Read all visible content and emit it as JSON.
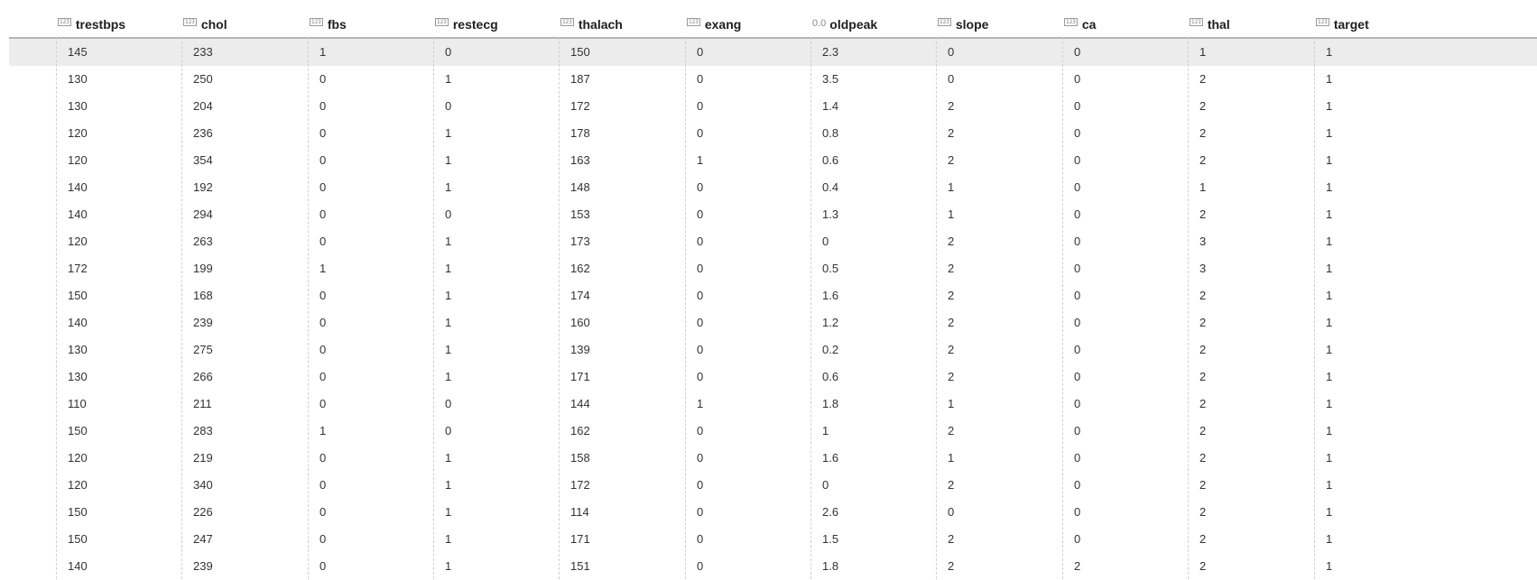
{
  "table": {
    "columns": [
      {
        "key": "trestbps",
        "label": "trestbps",
        "type_icon": "123"
      },
      {
        "key": "chol",
        "label": "chol",
        "type_icon": "123"
      },
      {
        "key": "fbs",
        "label": "fbs",
        "type_icon": "123"
      },
      {
        "key": "restecg",
        "label": "restecg",
        "type_icon": "123"
      },
      {
        "key": "thalach",
        "label": "thalach",
        "type_icon": "123"
      },
      {
        "key": "exang",
        "label": "exang",
        "type_icon": "123"
      },
      {
        "key": "oldpeak",
        "label": "oldpeak",
        "type_icon": "0.0"
      },
      {
        "key": "slope",
        "label": "slope",
        "type_icon": "123"
      },
      {
        "key": "ca",
        "label": "ca",
        "type_icon": "123"
      },
      {
        "key": "thal",
        "label": "thal",
        "type_icon": "123"
      },
      {
        "key": "target",
        "label": "target",
        "type_icon": "123"
      }
    ],
    "selected_row": 0,
    "rows": [
      [
        "145",
        "233",
        "1",
        "0",
        "150",
        "0",
        "2.3",
        "0",
        "0",
        "1",
        "1"
      ],
      [
        "130",
        "250",
        "0",
        "1",
        "187",
        "0",
        "3.5",
        "0",
        "0",
        "2",
        "1"
      ],
      [
        "130",
        "204",
        "0",
        "0",
        "172",
        "0",
        "1.4",
        "2",
        "0",
        "2",
        "1"
      ],
      [
        "120",
        "236",
        "0",
        "1",
        "178",
        "0",
        "0.8",
        "2",
        "0",
        "2",
        "1"
      ],
      [
        "120",
        "354",
        "0",
        "1",
        "163",
        "1",
        "0.6",
        "2",
        "0",
        "2",
        "1"
      ],
      [
        "140",
        "192",
        "0",
        "1",
        "148",
        "0",
        "0.4",
        "1",
        "0",
        "1",
        "1"
      ],
      [
        "140",
        "294",
        "0",
        "0",
        "153",
        "0",
        "1.3",
        "1",
        "0",
        "2",
        "1"
      ],
      [
        "120",
        "263",
        "0",
        "1",
        "173",
        "0",
        "0",
        "2",
        "0",
        "3",
        "1"
      ],
      [
        "172",
        "199",
        "1",
        "1",
        "162",
        "0",
        "0.5",
        "2",
        "0",
        "3",
        "1"
      ],
      [
        "150",
        "168",
        "0",
        "1",
        "174",
        "0",
        "1.6",
        "2",
        "0",
        "2",
        "1"
      ],
      [
        "140",
        "239",
        "0",
        "1",
        "160",
        "0",
        "1.2",
        "2",
        "0",
        "2",
        "1"
      ],
      [
        "130",
        "275",
        "0",
        "1",
        "139",
        "0",
        "0.2",
        "2",
        "0",
        "2",
        "1"
      ],
      [
        "130",
        "266",
        "0",
        "1",
        "171",
        "0",
        "0.6",
        "2",
        "0",
        "2",
        "1"
      ],
      [
        "110",
        "211",
        "0",
        "0",
        "144",
        "1",
        "1.8",
        "1",
        "0",
        "2",
        "1"
      ],
      [
        "150",
        "283",
        "1",
        "0",
        "162",
        "0",
        "1",
        "2",
        "0",
        "2",
        "1"
      ],
      [
        "120",
        "219",
        "0",
        "1",
        "158",
        "0",
        "1.6",
        "1",
        "0",
        "2",
        "1"
      ],
      [
        "120",
        "340",
        "0",
        "1",
        "172",
        "0",
        "0",
        "2",
        "0",
        "2",
        "1"
      ],
      [
        "150",
        "226",
        "0",
        "1",
        "114",
        "0",
        "2.6",
        "0",
        "0",
        "2",
        "1"
      ],
      [
        "150",
        "247",
        "0",
        "1",
        "171",
        "0",
        "1.5",
        "2",
        "0",
        "2",
        "1"
      ],
      [
        "140",
        "239",
        "0",
        "1",
        "151",
        "0",
        "1.8",
        "2",
        "2",
        "2",
        "1"
      ]
    ]
  }
}
